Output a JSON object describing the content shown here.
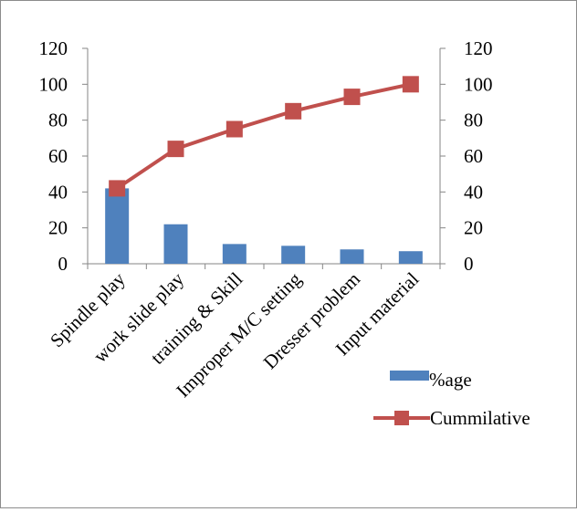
{
  "chart_data": {
    "type": "bar",
    "categories": [
      "Spindle play",
      "work slide play",
      "training & Skill",
      "Improper M/C setting",
      "Dresser problem",
      "Input material"
    ],
    "series": [
      {
        "name": "%age",
        "type": "bar",
        "axis": "left",
        "color": "#4f81bd",
        "values": [
          42,
          22,
          11,
          10,
          8,
          7
        ]
      },
      {
        "name": "Cummilative",
        "type": "line",
        "axis": "right",
        "color": "#c0504d",
        "marker": "square",
        "values": [
          42,
          64,
          75,
          85,
          93,
          100
        ]
      }
    ],
    "y_left": {
      "min": 0,
      "max": 120,
      "ticks": [
        0,
        20,
        40,
        60,
        80,
        100,
        120
      ]
    },
    "y_right": {
      "min": 0,
      "max": 120,
      "ticks": [
        0,
        20,
        40,
        60,
        80,
        100,
        120
      ]
    },
    "title": "",
    "xlabel": "",
    "ylabel": "",
    "grid": false,
    "legend_position": "right"
  }
}
